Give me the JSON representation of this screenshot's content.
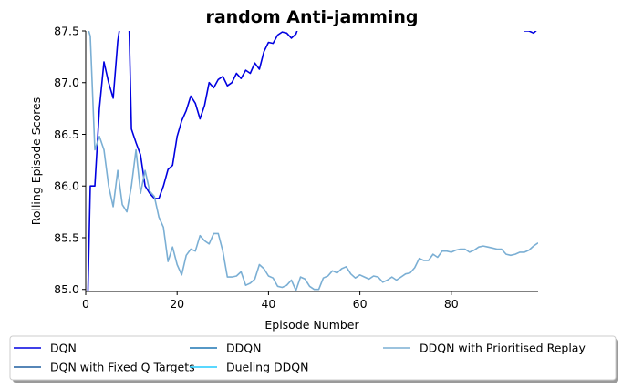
{
  "chart_data": {
    "type": "line",
    "title": "random Anti-jamming",
    "xlabel": "Episode Number",
    "ylabel": "Rolling Episode Scores",
    "xlim": [
      0,
      99
    ],
    "ylim": [
      84.98,
      87.5
    ],
    "xticks": [
      0,
      20,
      40,
      60,
      80
    ],
    "yticks": [
      85.0,
      85.5,
      86.0,
      86.5,
      87.0,
      87.5
    ],
    "grid": false,
    "legend_position": "bottom-center",
    "series": [
      {
        "name": "DQN",
        "color": "#0000e0",
        "x": [
          0,
          1,
          2,
          3,
          4,
          5,
          6,
          7,
          8,
          9,
          10,
          11,
          12,
          13,
          14,
          15,
          16,
          17,
          18,
          19,
          20,
          21,
          22,
          23,
          24,
          25,
          26,
          27,
          28,
          29,
          30,
          31,
          32,
          33,
          34,
          35,
          36,
          37,
          38,
          39,
          40,
          41,
          42,
          43,
          44,
          45,
          46,
          47,
          96,
          97,
          98,
          99
        ],
        "values": [
          84.0,
          86.0,
          86.0,
          86.75,
          87.2,
          87.0,
          86.85,
          87.4,
          87.7,
          88.5,
          86.55,
          86.42,
          86.3,
          86.0,
          85.93,
          85.88,
          85.88,
          86.0,
          86.16,
          86.2,
          86.48,
          86.63,
          86.73,
          86.87,
          86.8,
          86.65,
          86.78,
          87.0,
          86.95,
          87.03,
          87.06,
          86.97,
          87.0,
          87.09,
          87.04,
          87.12,
          87.09,
          87.19,
          87.13,
          87.3,
          87.39,
          87.38,
          87.46,
          87.49,
          87.48,
          87.43,
          87.47,
          87.6,
          87.5,
          87.5,
          87.48,
          87.52
        ]
      },
      {
        "name": "DQN with Fixed Q Targets",
        "color": "#1f5f9f",
        "x": [],
        "values": []
      },
      {
        "name": "DDQN",
        "color": "#1f77b4",
        "x": [],
        "values": []
      },
      {
        "name": "Dueling DDQN",
        "color": "#22ccff",
        "x": [],
        "values": []
      },
      {
        "name": "DDQN with Prioritised Replay",
        "color": "#7bafd4",
        "x": [
          0,
          1,
          2,
          3,
          4,
          5,
          6,
          7,
          8,
          9,
          10,
          11,
          12,
          13,
          14,
          15,
          16,
          17,
          18,
          19,
          20,
          21,
          22,
          23,
          24,
          25,
          26,
          27,
          28,
          29,
          30,
          31,
          32,
          33,
          34,
          35,
          36,
          37,
          38,
          39,
          40,
          41,
          42,
          43,
          44,
          45,
          46,
          47,
          48,
          49,
          50,
          51,
          52,
          53,
          54,
          55,
          56,
          57,
          58,
          59,
          60,
          61,
          62,
          63,
          64,
          65,
          66,
          67,
          68,
          69,
          70,
          71,
          72,
          73,
          74,
          75,
          76,
          77,
          78,
          79,
          80,
          81,
          82,
          83,
          84,
          85,
          86,
          87,
          88,
          89,
          90,
          91,
          92,
          93,
          94,
          95,
          96,
          97,
          98,
          99
        ],
        "values": [
          87.6,
          87.45,
          86.35,
          86.48,
          86.35,
          86.0,
          85.8,
          86.15,
          85.82,
          85.75,
          86.0,
          86.35,
          85.93,
          86.15,
          85.95,
          85.9,
          85.7,
          85.6,
          85.27,
          85.41,
          85.24,
          85.14,
          85.33,
          85.39,
          85.37,
          85.52,
          85.47,
          85.44,
          85.54,
          85.54,
          85.37,
          85.12,
          85.12,
          85.13,
          85.17,
          85.04,
          85.06,
          85.1,
          85.24,
          85.2,
          85.13,
          85.11,
          85.03,
          85.02,
          85.04,
          85.09,
          84.99,
          85.12,
          85.1,
          85.03,
          85.0,
          85.0,
          85.11,
          85.13,
          85.18,
          85.16,
          85.2,
          85.22,
          85.15,
          85.11,
          85.14,
          85.12,
          85.1,
          85.13,
          85.12,
          85.07,
          85.09,
          85.12,
          85.09,
          85.12,
          85.15,
          85.16,
          85.21,
          85.3,
          85.28,
          85.28,
          85.34,
          85.31,
          85.37,
          85.37,
          85.36,
          85.38,
          85.39,
          85.39,
          85.36,
          85.38,
          85.41,
          85.42,
          85.41,
          85.4,
          85.39,
          85.39,
          85.34,
          85.33,
          85.34,
          85.36,
          85.36,
          85.38,
          85.42,
          85.45
        ]
      }
    ]
  }
}
